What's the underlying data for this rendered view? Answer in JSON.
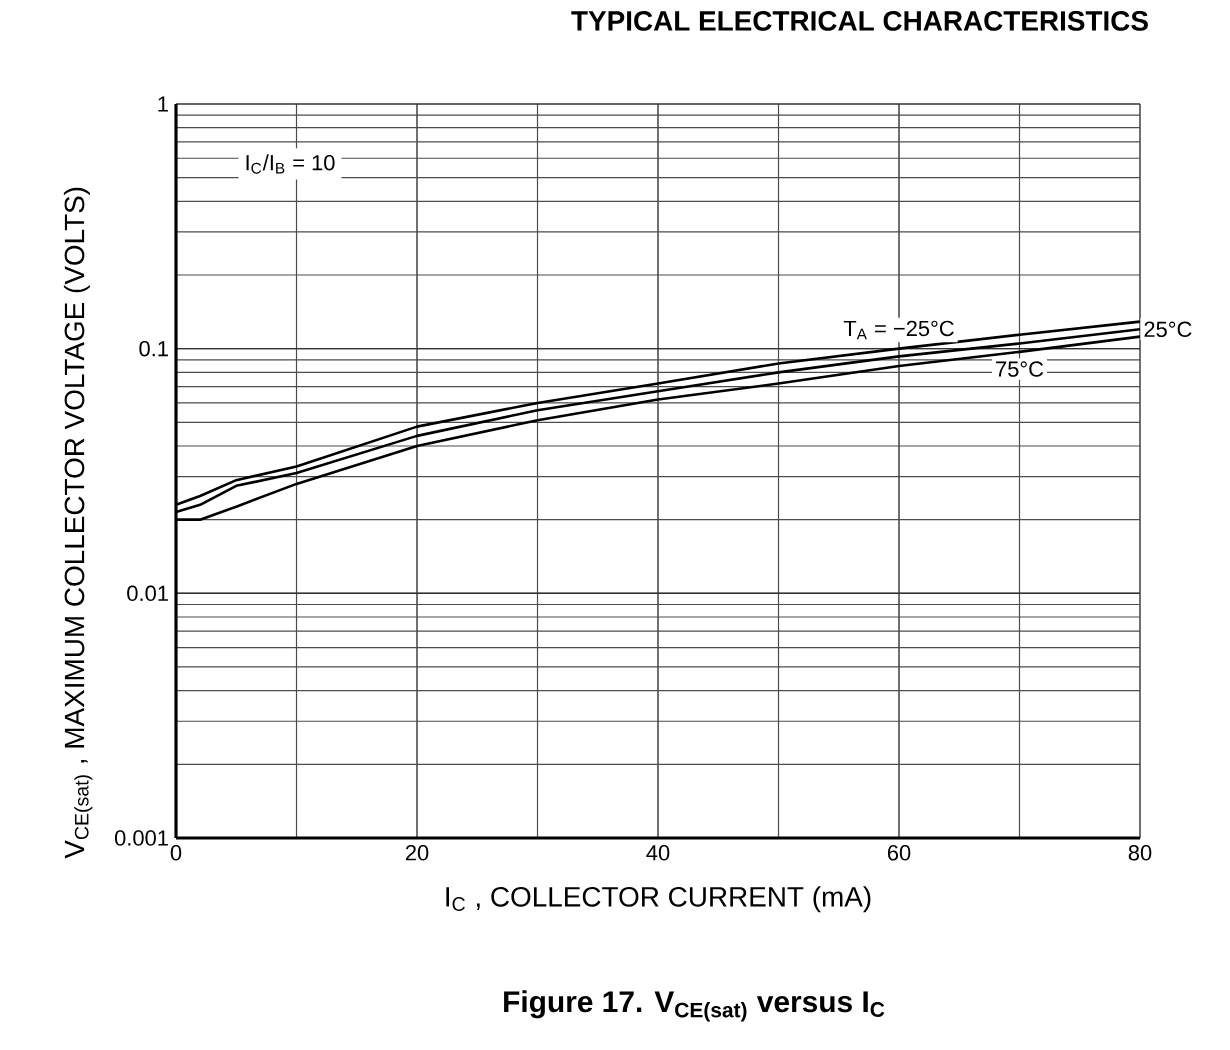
{
  "chart_data": {
    "type": "line",
    "title": "TYPICAL ELECTRICAL CHARACTERISTICS",
    "xlabel": "I$_{C}$ , COLLECTOR CURRENT (mA)",
    "ylabel": "V$_{CE(sat)}$ , MAXIMUM COLLECTOR VOLTAGE (VOLTS)",
    "annotations": [
      "I$_{C}$/I$_{B}$ = 10",
      "**Figure 17. V$_{CE(sat)}$ versus I$_{C}$**"
    ],
    "x": [
      0,
      2,
      5,
      10,
      20,
      30,
      40,
      50,
      60,
      70,
      80
    ],
    "series": [
      {
        "name": "T$_{A}$ = −25°C",
        "color": "#000000",
        "values": [
          0.023,
          0.025,
          0.029,
          0.033,
          0.048,
          0.06,
          0.072,
          0.087,
          0.1,
          0.114,
          0.129
        ]
      },
      {
        "name": "25°C",
        "color": "#000000",
        "values": [
          0.0215,
          0.023,
          0.0275,
          0.031,
          0.044,
          0.056,
          0.067,
          0.08,
          0.093,
          0.105,
          0.12
        ]
      },
      {
        "name": "75°C",
        "color": "#000000",
        "values": [
          0.02,
          0.02,
          0.0226,
          0.028,
          0.04,
          0.051,
          0.062,
          0.072,
          0.085,
          0.097,
          0.112
        ]
      }
    ],
    "xlim": [
      0,
      80
    ],
    "ylim": [
      0.001,
      1
    ],
    "xticks": [
      0,
      20,
      40,
      60,
      80
    ],
    "yticks": [
      0.001,
      0.01,
      0.1,
      1
    ],
    "log": "y",
    "grid": true,
    "legend": false
  }
}
